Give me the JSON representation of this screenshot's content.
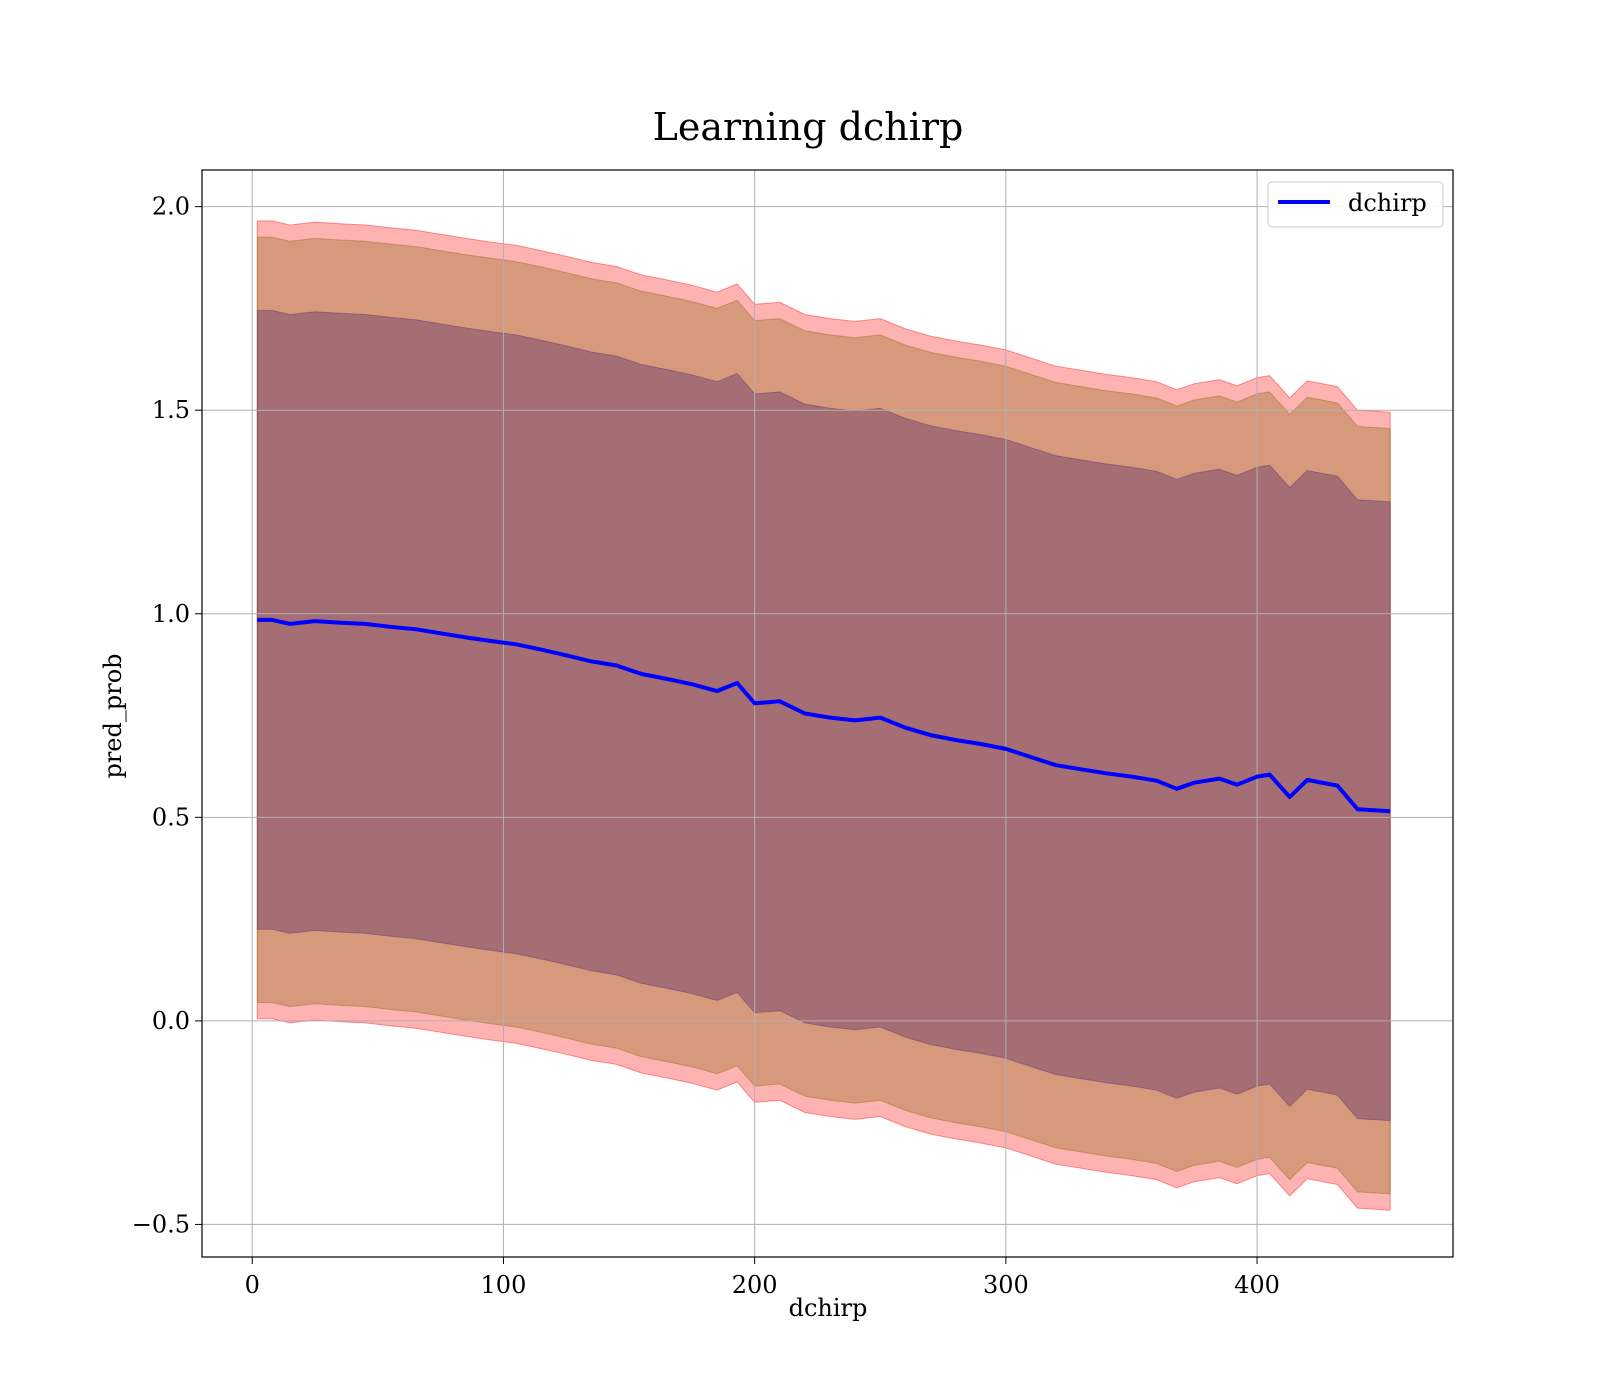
{
  "chart_data": {
    "type": "line",
    "title": "Learning dchirp",
    "xlabel": "dchirp",
    "ylabel": "pred_prob",
    "xlim": [
      -20,
      478
    ],
    "ylim": [
      -0.58,
      2.09
    ],
    "xticks": [
      0,
      100,
      200,
      300,
      400
    ],
    "xtick_labels": [
      "0",
      "100",
      "200",
      "300",
      "400"
    ],
    "yticks": [
      -0.5,
      0.0,
      0.5,
      1.0,
      1.5,
      2.0
    ],
    "ytick_labels": [
      "−0.5",
      "0.0",
      "0.5",
      "1.0",
      "1.5",
      "2.0"
    ],
    "grid": true,
    "legend_position": "top-right",
    "series": [
      {
        "name": "dchirp",
        "color": "#0000ff",
        "x": [
          2,
          8,
          15,
          25,
          35,
          45,
          55,
          65,
          75,
          85,
          95,
          105,
          115,
          125,
          135,
          145,
          155,
          165,
          175,
          185,
          193,
          200,
          210,
          220,
          230,
          240,
          250,
          260,
          270,
          280,
          290,
          300,
          310,
          320,
          330,
          340,
          350,
          360,
          368,
          375,
          385,
          392,
          400,
          405,
          413,
          420,
          432,
          440,
          453
        ],
        "y": [
          0.985,
          0.985,
          0.975,
          0.982,
          0.978,
          0.975,
          0.968,
          0.962,
          0.952,
          0.942,
          0.933,
          0.925,
          0.912,
          0.898,
          0.883,
          0.873,
          0.852,
          0.84,
          0.827,
          0.81,
          0.83,
          0.78,
          0.785,
          0.755,
          0.745,
          0.738,
          0.745,
          0.72,
          0.702,
          0.69,
          0.68,
          0.668,
          0.648,
          0.628,
          0.618,
          0.608,
          0.6,
          0.59,
          0.57,
          0.585,
          0.595,
          0.58,
          0.6,
          0.605,
          0.55,
          0.592,
          0.578,
          0.52,
          0.515
        ]
      }
    ],
    "bands": [
      {
        "color": "#ff0000",
        "opacity": 0.3,
        "upper_offset": 0.98,
        "lower_offset": 0.98
      },
      {
        "color": "#8b6914",
        "opacity": 0.35,
        "upper_offset": 0.94,
        "lower_offset": 0.94
      },
      {
        "color": "#5a2d6e",
        "opacity": 0.4,
        "upper_offset": 0.76,
        "lower_offset": 0.76
      }
    ]
  }
}
